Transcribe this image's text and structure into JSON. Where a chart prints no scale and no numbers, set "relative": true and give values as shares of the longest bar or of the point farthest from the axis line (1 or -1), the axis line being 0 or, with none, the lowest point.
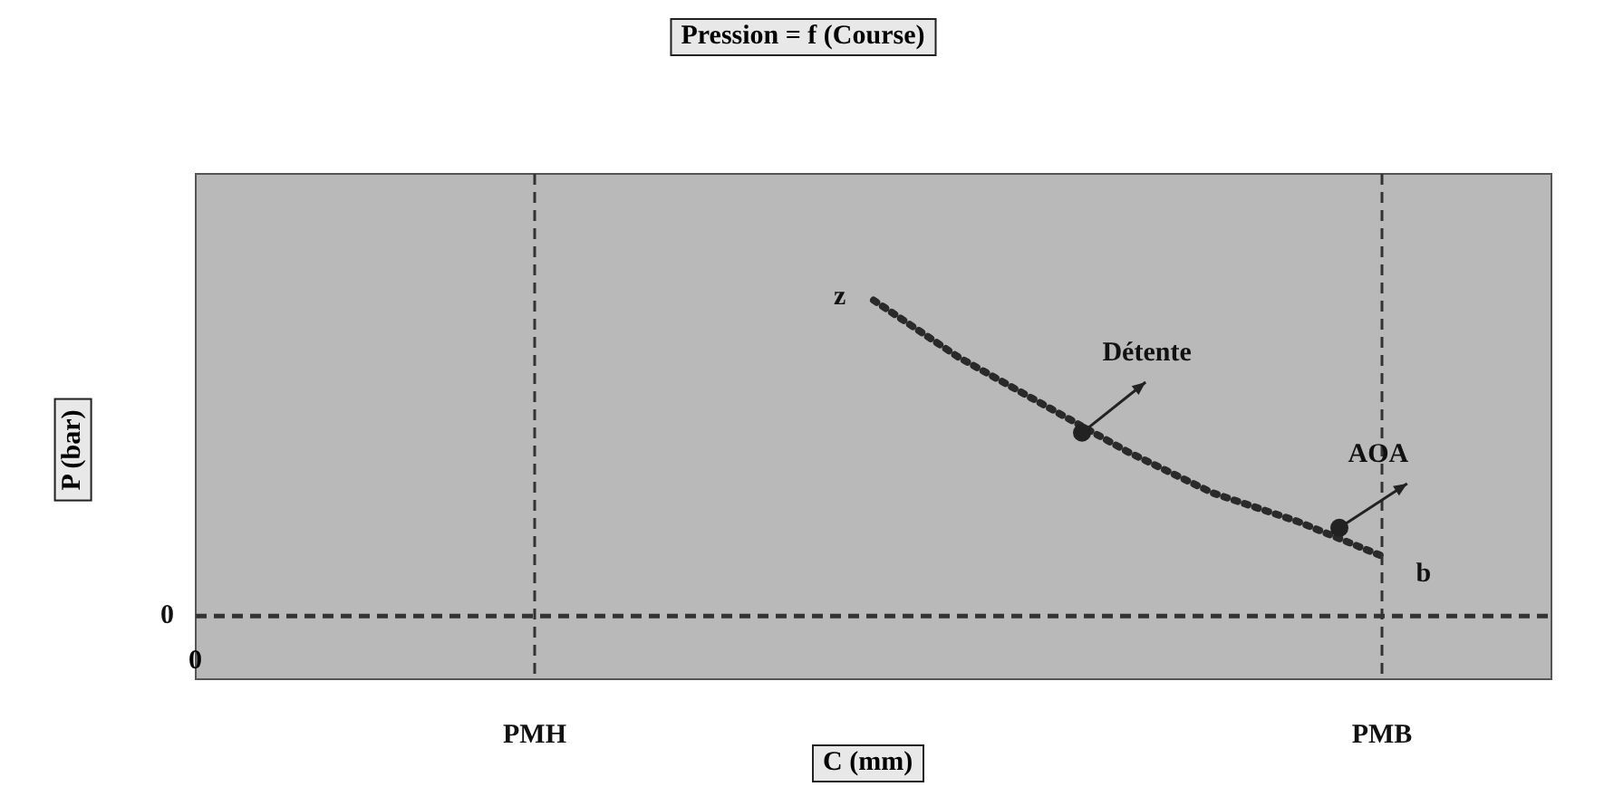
{
  "chart_data": {
    "type": "line",
    "title": "Pression = f (Course)",
    "xlabel": "C (mm)",
    "ylabel": "P (bar)",
    "categories": [
      null,
      null,
      null,
      null,
      "PMH",
      null,
      null,
      null,
      null,
      null,
      null,
      null,
      null,
      null,
      "PMB",
      null,
      null
    ],
    "series": [
      {
        "color": "#2a2a2a",
        "values": [
          null,
          null,
          null,
          null,
          null,
          null,
          null,
          null,
          1,
          0.82,
          0.67,
          0.52,
          0.39,
          0.3,
          0.19,
          null,
          null
        ]
      }
    ],
    "relative": true,
    "line_style": "dotted",
    "marker": "none",
    "grid": false,
    "legend": false,
    "ref_lines": [
      {
        "axis": "y",
        "value": 0,
        "label": "0",
        "line_style": "dashed"
      },
      {
        "axis": "x",
        "value": "PMH",
        "line_style": "dashed"
      },
      {
        "axis": "x",
        "value": "PMB",
        "line_style": "dashed"
      }
    ],
    "annotations": [
      "z",
      "Détente",
      "AOA",
      "b",
      "0"
    ]
  }
}
